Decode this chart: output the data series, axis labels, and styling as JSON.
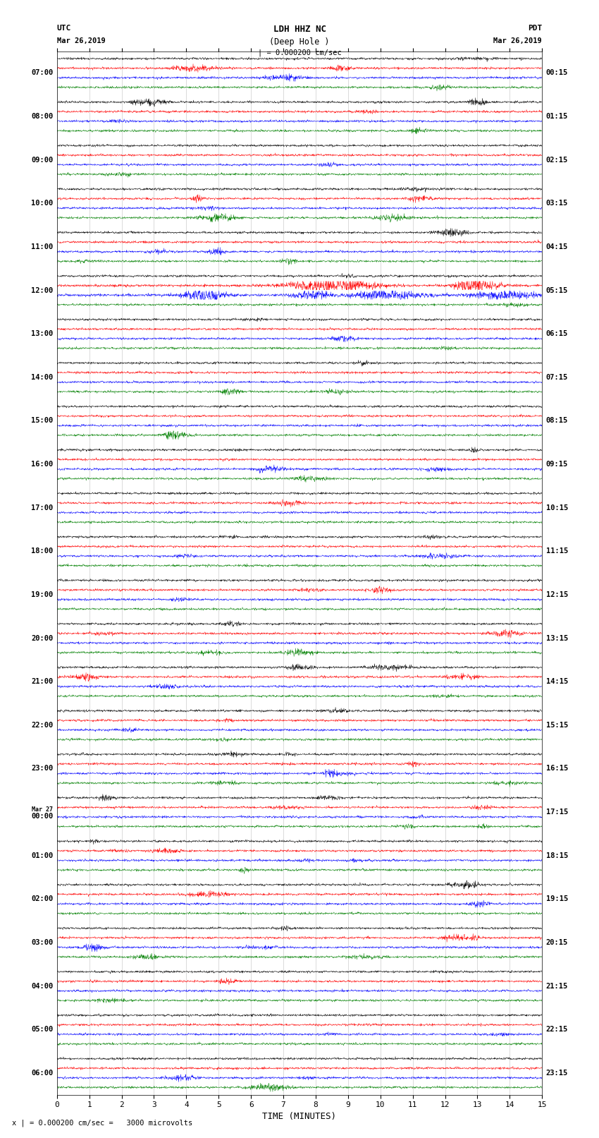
{
  "title_line1": "LDH HHZ NC",
  "title_line2": "(Deep Hole )",
  "title_scale": "| = 0.000200 cm/sec",
  "left_header_line1": "UTC",
  "left_header_line2": "Mar 26,2019",
  "right_header_line1": "PDT",
  "right_header_line2": "Mar 26,2019",
  "xlabel": "TIME (MINUTES)",
  "footer": "x | = 0.000200 cm/sec =   3000 microvolts",
  "colors": [
    "black",
    "red",
    "blue",
    "green"
  ],
  "fig_width": 8.5,
  "fig_height": 16.13,
  "dpi": 100,
  "xlim": [
    0,
    15
  ],
  "xticks": [
    0,
    1,
    2,
    3,
    4,
    5,
    6,
    7,
    8,
    9,
    10,
    11,
    12,
    13,
    14,
    15
  ],
  "left_time_labels": [
    "07:00",
    "08:00",
    "09:00",
    "10:00",
    "11:00",
    "12:00",
    "13:00",
    "14:00",
    "15:00",
    "16:00",
    "17:00",
    "18:00",
    "19:00",
    "20:00",
    "21:00",
    "22:00",
    "23:00",
    "Mar 27",
    "00:00",
    "01:00",
    "02:00",
    "03:00",
    "04:00",
    "05:00",
    "06:00"
  ],
  "right_time_labels": [
    "00:15",
    "01:15",
    "02:15",
    "03:15",
    "04:15",
    "05:15",
    "06:15",
    "07:15",
    "08:15",
    "09:15",
    "10:15",
    "11:15",
    "12:15",
    "13:15",
    "14:15",
    "15:15",
    "16:15",
    "17:15",
    "18:15",
    "19:15",
    "20:15",
    "21:15",
    "22:15",
    "23:15"
  ],
  "n_groups": 24,
  "traces_per_group": 4,
  "noise_scale": 0.03,
  "event_group": 5,
  "event_scale": 0.25
}
